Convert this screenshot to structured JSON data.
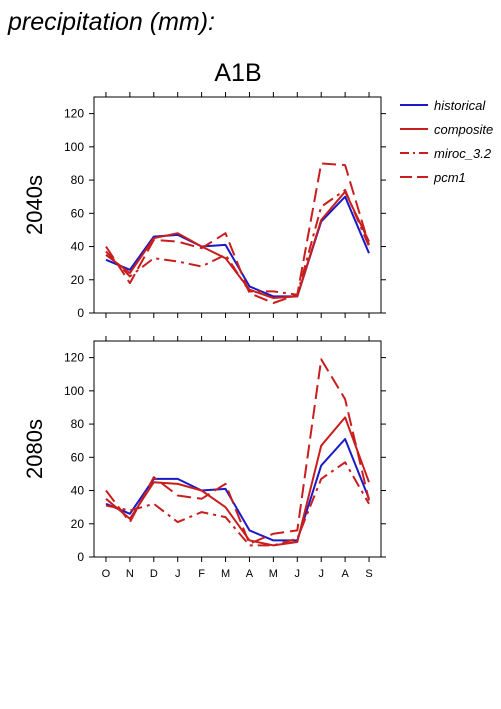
{
  "page_title": "precipitation (mm):",
  "chart_data": [
    {
      "type": "line",
      "title": "A1B",
      "panel_label": "2040s",
      "categories": [
        "O",
        "N",
        "D",
        "J",
        "F",
        "M",
        "A",
        "M",
        "J",
        "J",
        "A",
        "S"
      ],
      "ylim": [
        0,
        130
      ],
      "yticks": [
        0,
        20,
        40,
        60,
        80,
        100,
        120
      ],
      "series": [
        {
          "name": "historical",
          "color": "#1a1ac8",
          "dash": "solid",
          "values": [
            32,
            26,
            46,
            47,
            40,
            41,
            16,
            10,
            10,
            55,
            70,
            36
          ]
        },
        {
          "name": "composite",
          "color": "#c81e1e",
          "dash": "solid",
          "values": [
            35,
            24,
            45,
            48,
            40,
            33,
            14,
            9,
            10,
            56,
            73,
            43
          ]
        },
        {
          "name": "miroc_3.2",
          "color": "#c81e1e",
          "dash": "dashdot",
          "values": [
            37,
            22,
            33,
            31,
            28,
            35,
            13,
            13,
            11,
            64,
            74,
            40
          ]
        },
        {
          "name": "pcm1",
          "color": "#c81e1e",
          "dash": "dash",
          "values": [
            40,
            18,
            44,
            43,
            39,
            48,
            12,
            6,
            11,
            90,
            89,
            41
          ]
        }
      ]
    },
    {
      "type": "line",
      "panel_label": "2080s",
      "categories": [
        "O",
        "N",
        "D",
        "J",
        "F",
        "M",
        "A",
        "M",
        "J",
        "J",
        "A",
        "S"
      ],
      "ylim": [
        0,
        130
      ],
      "yticks": [
        0,
        20,
        40,
        60,
        80,
        100,
        120
      ],
      "series": [
        {
          "name": "historical",
          "color": "#1a1ac8",
          "dash": "solid",
          "values": [
            32,
            26,
            47,
            47,
            40,
            41,
            16,
            10,
            10,
            55,
            71,
            35
          ]
        },
        {
          "name": "composite",
          "color": "#c81e1e",
          "dash": "solid",
          "values": [
            35,
            23,
            45,
            44,
            40,
            30,
            10,
            7,
            9,
            67,
            84,
            45
          ]
        },
        {
          "name": "miroc_3.2",
          "color": "#c81e1e",
          "dash": "dashdot",
          "values": [
            31,
            28,
            32,
            21,
            27,
            24,
            7,
            7,
            11,
            47,
            57,
            32
          ]
        },
        {
          "name": "pcm1",
          "color": "#c81e1e",
          "dash": "dash",
          "values": [
            40,
            21,
            48,
            37,
            35,
            44,
            8,
            14,
            16,
            119,
            95,
            34
          ]
        }
      ]
    }
  ],
  "legend": {
    "placement": "right",
    "entries": [
      "historical",
      "composite",
      "miroc_3.2",
      "pcm1"
    ]
  }
}
